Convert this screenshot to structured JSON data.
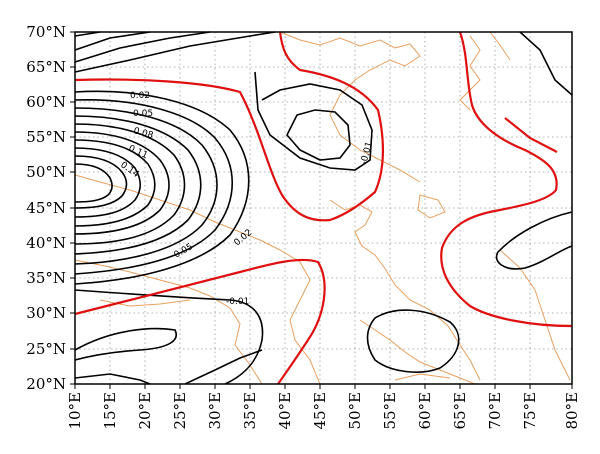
{
  "map": {
    "y_ticks": [
      "70°N",
      "65°N",
      "60°N",
      "55°N",
      "50°N",
      "45°N",
      "40°N",
      "35°N",
      "30°N",
      "25°N",
      "20°N"
    ],
    "x_ticks": [
      "10°E",
      "15°E",
      "20°E",
      "25°E",
      "30°E",
      "35°E",
      "40°E",
      "45°E",
      "50°E",
      "55°E",
      "60°E",
      "65°E",
      "70°E",
      "75°E",
      "80°E"
    ],
    "contour_labels": [
      "0.02",
      "0.05",
      "0.08",
      "0.11",
      "0.14",
      "0.05",
      "0.02",
      "-0.01",
      "-0.01"
    ],
    "extent": {
      "lon": [
        10,
        80
      ],
      "lat": [
        20,
        70
      ]
    },
    "colors": {
      "contour": "#000000",
      "zero_contour": "#e01010",
      "coastline": "#e8a060",
      "grid": "#9a9a9a"
    },
    "grid": true
  }
}
